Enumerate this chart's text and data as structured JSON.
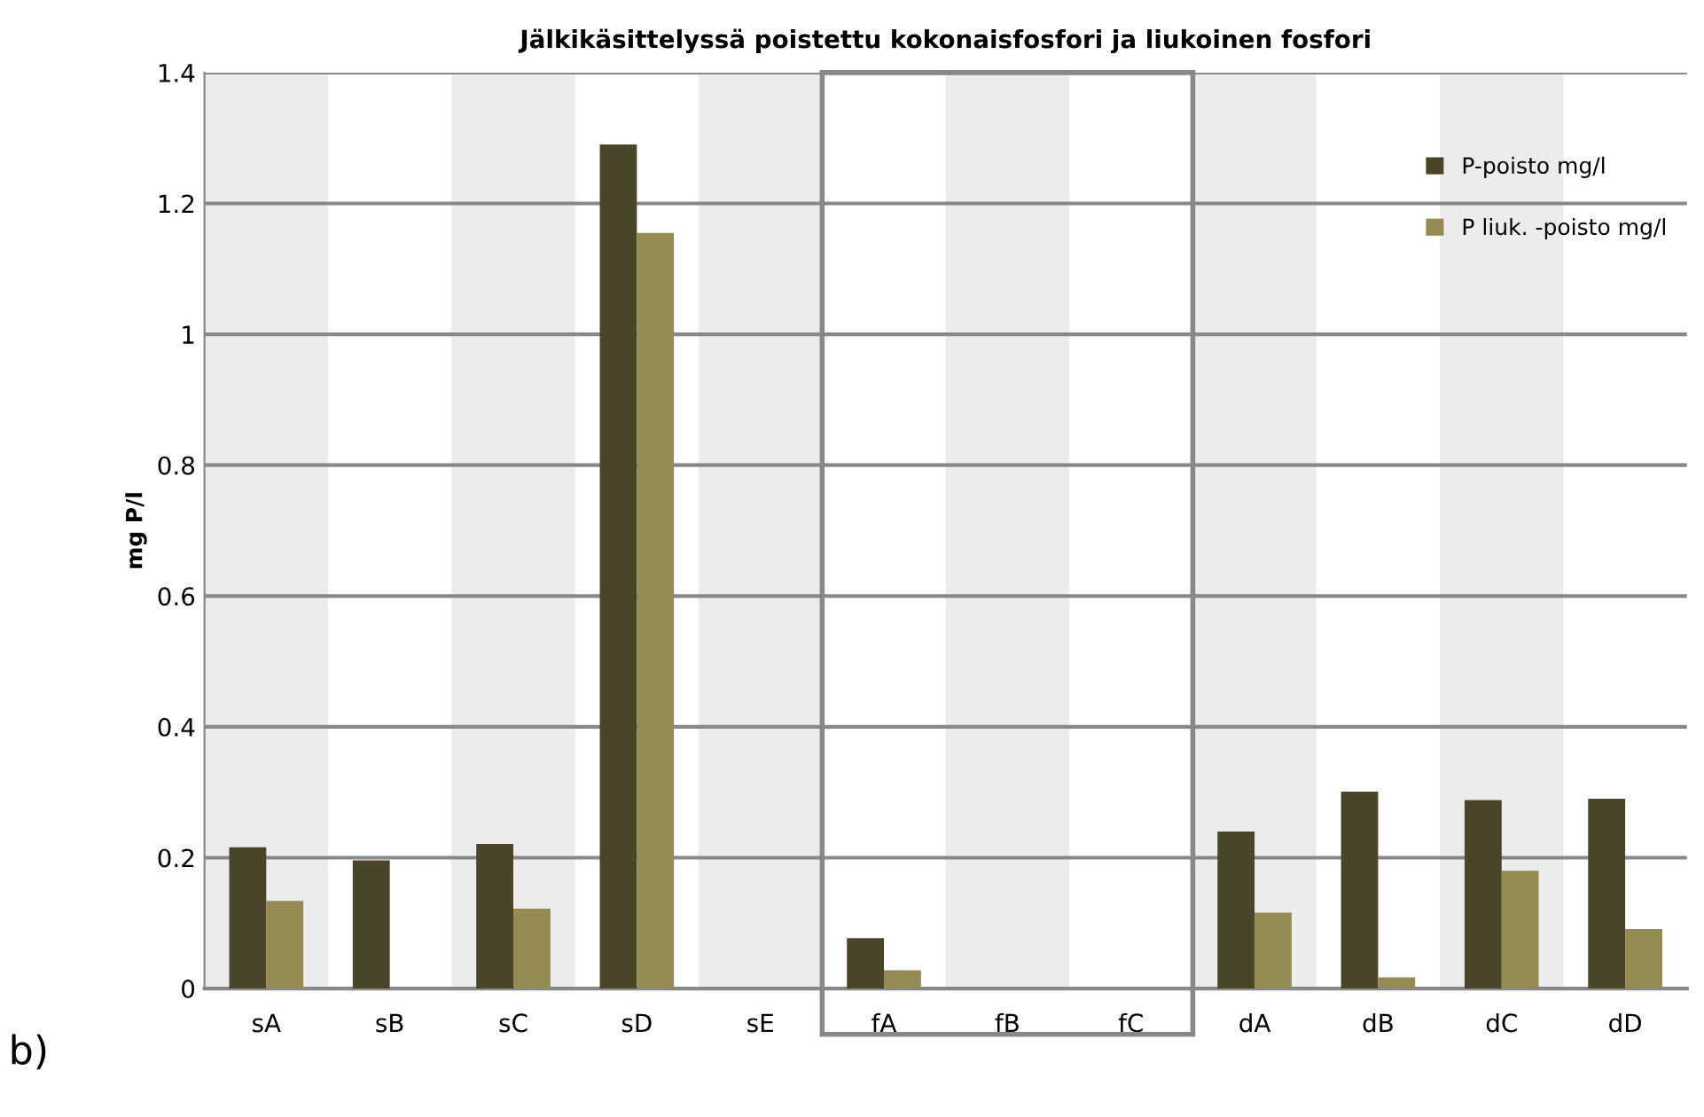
{
  "chart_data": {
    "type": "bar",
    "title": "Jälkikäsittelyssä poistettu kokonaisfosfori ja liukoinen fosfori",
    "ylabel": "mg P/l",
    "categories": [
      "sA",
      "sB",
      "sC",
      "sD",
      "sE",
      "fA",
      "fB",
      "fC",
      "dA",
      "dB",
      "dC",
      "dD"
    ],
    "series": [
      {
        "name": "P-poisto mg/l",
        "color": "#4a4429",
        "values": [
          0.216,
          0.196,
          0.221,
          1.29,
          0,
          0.077,
          0,
          0,
          0.24,
          0.301,
          0.288,
          0.29
        ]
      },
      {
        "name": "P liuk. -poisto mg/l",
        "color": "#948a54",
        "values": [
          0.134,
          0,
          0.122,
          1.155,
          0,
          0.028,
          0,
          0,
          0.116,
          0.017,
          0.18,
          0.091
        ]
      }
    ],
    "ylim": [
      0,
      1.4
    ],
    "yticks": [
      0,
      0.2,
      0.4,
      0.6,
      0.8,
      1,
      1.2,
      1.4
    ],
    "grid": "y",
    "legend": "top right",
    "annotations": [
      "b)"
    ]
  }
}
